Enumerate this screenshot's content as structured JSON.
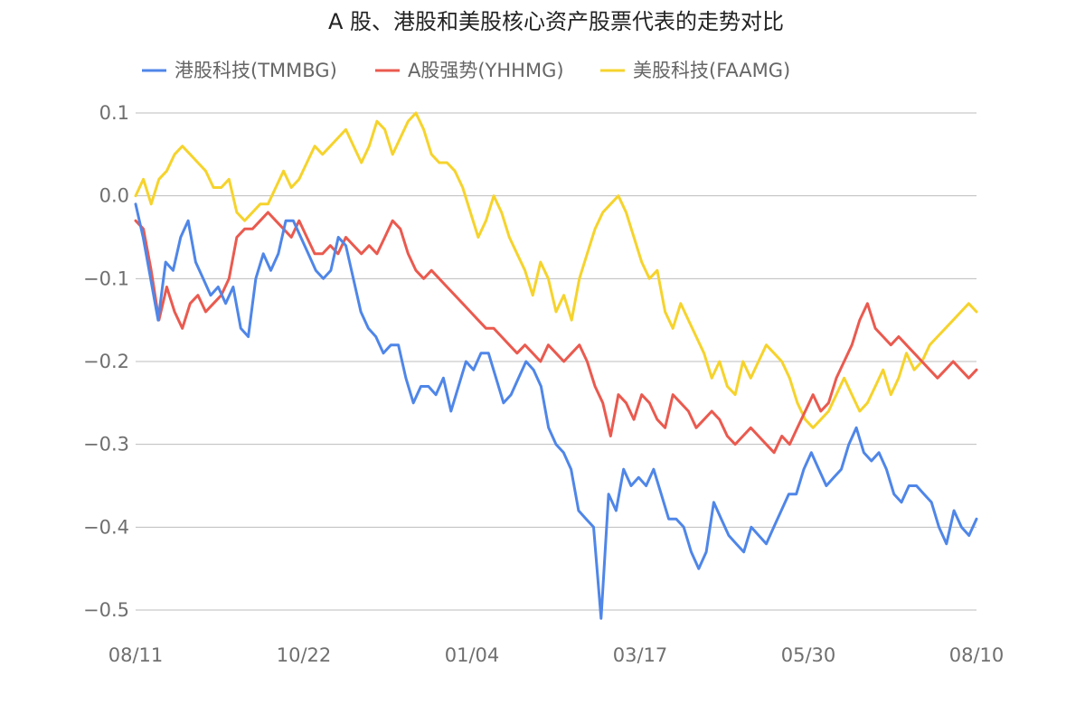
{
  "chart_data": {
    "type": "line",
    "title": "A 股、港股和美股核心资产股票代表的走势对比",
    "xlabel": "",
    "ylabel": "",
    "x_ticks": [
      "08/11",
      "10/22",
      "01/04",
      "03/17",
      "05/30",
      "08/10"
    ],
    "y_ticks": [
      0.1,
      0.0,
      -0.1,
      -0.2,
      -0.3,
      -0.4,
      -0.5
    ],
    "y_tick_labels": [
      "0.1",
      "0.0",
      "−0.1",
      "−0.2",
      "−0.3",
      "−0.4",
      "−0.5"
    ],
    "ylim": [
      -0.55,
      0.11
    ],
    "grid": true,
    "legend_position": "top",
    "series": [
      {
        "name": "港股科技(TMMBG)",
        "color": "#4f86e8",
        "values": [
          -0.01,
          -0.05,
          -0.1,
          -0.15,
          -0.08,
          -0.09,
          -0.05,
          -0.03,
          -0.08,
          -0.1,
          -0.12,
          -0.11,
          -0.13,
          -0.11,
          -0.16,
          -0.17,
          -0.1,
          -0.07,
          -0.09,
          -0.07,
          -0.03,
          -0.03,
          -0.05,
          -0.07,
          -0.09,
          -0.1,
          -0.09,
          -0.05,
          -0.06,
          -0.1,
          -0.14,
          -0.16,
          -0.17,
          -0.19,
          -0.18,
          -0.18,
          -0.22,
          -0.25,
          -0.23,
          -0.23,
          -0.24,
          -0.22,
          -0.26,
          -0.23,
          -0.2,
          -0.21,
          -0.19,
          -0.19,
          -0.22,
          -0.25,
          -0.24,
          -0.22,
          -0.2,
          -0.21,
          -0.23,
          -0.28,
          -0.3,
          -0.31,
          -0.33,
          -0.38,
          -0.39,
          -0.4,
          -0.51,
          -0.36,
          -0.38,
          -0.33,
          -0.35,
          -0.34,
          -0.35,
          -0.33,
          -0.36,
          -0.39,
          -0.39,
          -0.4,
          -0.43,
          -0.45,
          -0.43,
          -0.37,
          -0.39,
          -0.41,
          -0.42,
          -0.43,
          -0.4,
          -0.41,
          -0.42,
          -0.4,
          -0.38,
          -0.36,
          -0.36,
          -0.33,
          -0.31,
          -0.33,
          -0.35,
          -0.34,
          -0.33,
          -0.3,
          -0.28,
          -0.31,
          -0.32,
          -0.31,
          -0.33,
          -0.36,
          -0.37,
          -0.35,
          -0.35,
          -0.36,
          -0.37,
          -0.4,
          -0.42,
          -0.38,
          -0.4,
          -0.41,
          -0.39
        ]
      },
      {
        "name": "A股强势(YHHMG)",
        "color": "#ea5a4f",
        "values": [
          -0.03,
          -0.04,
          -0.09,
          -0.15,
          -0.11,
          -0.14,
          -0.16,
          -0.13,
          -0.12,
          -0.14,
          -0.13,
          -0.12,
          -0.1,
          -0.05,
          -0.04,
          -0.04,
          -0.03,
          -0.02,
          -0.03,
          -0.04,
          -0.05,
          -0.03,
          -0.05,
          -0.07,
          -0.07,
          -0.06,
          -0.07,
          -0.05,
          -0.06,
          -0.07,
          -0.06,
          -0.07,
          -0.05,
          -0.03,
          -0.04,
          -0.07,
          -0.09,
          -0.1,
          -0.09,
          -0.1,
          -0.11,
          -0.12,
          -0.13,
          -0.14,
          -0.15,
          -0.16,
          -0.16,
          -0.17,
          -0.18,
          -0.19,
          -0.18,
          -0.19,
          -0.2,
          -0.18,
          -0.19,
          -0.2,
          -0.19,
          -0.18,
          -0.2,
          -0.23,
          -0.25,
          -0.29,
          -0.24,
          -0.25,
          -0.27,
          -0.24,
          -0.25,
          -0.27,
          -0.28,
          -0.24,
          -0.25,
          -0.26,
          -0.28,
          -0.27,
          -0.26,
          -0.27,
          -0.29,
          -0.3,
          -0.29,
          -0.28,
          -0.29,
          -0.3,
          -0.31,
          -0.29,
          -0.3,
          -0.28,
          -0.26,
          -0.24,
          -0.26,
          -0.25,
          -0.22,
          -0.2,
          -0.18,
          -0.15,
          -0.13,
          -0.16,
          -0.17,
          -0.18,
          -0.17,
          -0.18,
          -0.19,
          -0.2,
          -0.21,
          -0.22,
          -0.21,
          -0.2,
          -0.21,
          -0.22,
          -0.21
        ]
      },
      {
        "name": "美股科技(FAAMG)",
        "color": "#f6d32c",
        "values": [
          0.0,
          0.02,
          -0.01,
          0.02,
          0.03,
          0.05,
          0.06,
          0.05,
          0.04,
          0.03,
          0.01,
          0.01,
          0.02,
          -0.02,
          -0.03,
          -0.02,
          -0.01,
          -0.01,
          0.01,
          0.03,
          0.01,
          0.02,
          0.04,
          0.06,
          0.05,
          0.06,
          0.07,
          0.08,
          0.06,
          0.04,
          0.06,
          0.09,
          0.08,
          0.05,
          0.07,
          0.09,
          0.1,
          0.08,
          0.05,
          0.04,
          0.04,
          0.03,
          0.01,
          -0.02,
          -0.05,
          -0.03,
          0.0,
          -0.02,
          -0.05,
          -0.07,
          -0.09,
          -0.12,
          -0.08,
          -0.1,
          -0.14,
          -0.12,
          -0.15,
          -0.1,
          -0.07,
          -0.04,
          -0.02,
          -0.01,
          0.0,
          -0.02,
          -0.05,
          -0.08,
          -0.1,
          -0.09,
          -0.14,
          -0.16,
          -0.13,
          -0.15,
          -0.17,
          -0.19,
          -0.22,
          -0.2,
          -0.23,
          -0.24,
          -0.2,
          -0.22,
          -0.2,
          -0.18,
          -0.19,
          -0.2,
          -0.22,
          -0.25,
          -0.27,
          -0.28,
          -0.27,
          -0.26,
          -0.24,
          -0.22,
          -0.24,
          -0.26,
          -0.25,
          -0.23,
          -0.21,
          -0.24,
          -0.22,
          -0.19,
          -0.21,
          -0.2,
          -0.18,
          -0.17,
          -0.16,
          -0.15,
          -0.14,
          -0.13,
          -0.14
        ]
      }
    ]
  }
}
